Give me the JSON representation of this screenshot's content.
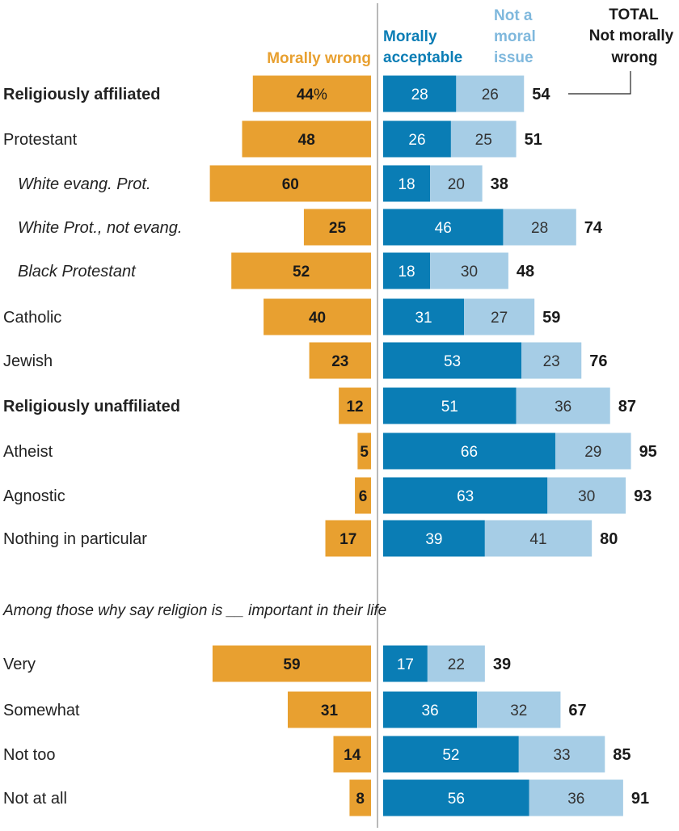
{
  "chart_data": {
    "type": "bar",
    "legend": {
      "morally_wrong": "Morally wrong",
      "acceptable_line1": "Morally",
      "acceptable_line2": "acceptable",
      "not_moral_line1": "Not a",
      "not_moral_line2": "moral",
      "not_moral_line3": "issue",
      "total_line1": "TOTAL",
      "total_line2": "Not morally",
      "total_line3": "wrong"
    },
    "percent_sign": "%",
    "colors": {
      "morally_wrong": "#E8A030",
      "morally_acceptable": "#0A7DB5",
      "not_moral_issue": "#A6CDE6",
      "not_moral_header": "#7FB8DD",
      "axis": "#8a8a8a"
    },
    "section_label": "Among those why say religion is __ important in their life",
    "groups": [
      {
        "label": "Religiously affiliated",
        "style": "bold",
        "wrong": 44,
        "acceptable": 28,
        "not_moral": 26,
        "total": 54
      },
      {
        "label": "Protestant",
        "style": "normal",
        "wrong": 48,
        "acceptable": 26,
        "not_moral": 25,
        "total": 51
      },
      {
        "label": "White evang. Prot.",
        "style": "italic",
        "wrong": 60,
        "acceptable": 18,
        "not_moral": 20,
        "total": 38
      },
      {
        "label": "White Prot., not evang.",
        "style": "italic",
        "wrong": 25,
        "acceptable": 46,
        "not_moral": 28,
        "total": 74
      },
      {
        "label": "Black Protestant",
        "style": "italic",
        "wrong": 52,
        "acceptable": 18,
        "not_moral": 30,
        "total": 48
      },
      {
        "label": "Catholic",
        "style": "normal",
        "wrong": 40,
        "acceptable": 31,
        "not_moral": 27,
        "total": 59
      },
      {
        "label": "Jewish",
        "style": "normal",
        "wrong": 23,
        "acceptable": 53,
        "not_moral": 23,
        "total": 76
      },
      {
        "label": "Religiously unaffiliated",
        "style": "bold",
        "wrong": 12,
        "acceptable": 51,
        "not_moral": 36,
        "total": 87
      },
      {
        "label": "Atheist",
        "style": "normal",
        "wrong": 5,
        "acceptable": 66,
        "not_moral": 29,
        "total": 95
      },
      {
        "label": "Agnostic",
        "style": "normal",
        "wrong": 6,
        "acceptable": 63,
        "not_moral": 30,
        "total": 93
      },
      {
        "label": "Nothing in particular",
        "style": "normal",
        "wrong": 17,
        "acceptable": 39,
        "not_moral": 41,
        "total": 80
      }
    ],
    "importance": [
      {
        "label": "Very",
        "style": "normal",
        "wrong": 59,
        "acceptable": 17,
        "not_moral": 22,
        "total": 39
      },
      {
        "label": "Somewhat",
        "style": "normal",
        "wrong": 31,
        "acceptable": 36,
        "not_moral": 32,
        "total": 67
      },
      {
        "label": "Not too",
        "style": "normal",
        "wrong": 14,
        "acceptable": 52,
        "not_moral": 33,
        "total": 85
      },
      {
        "label": "Not at all",
        "style": "normal",
        "wrong": 8,
        "acceptable": 56,
        "not_moral": 36,
        "total": 91
      }
    ]
  }
}
